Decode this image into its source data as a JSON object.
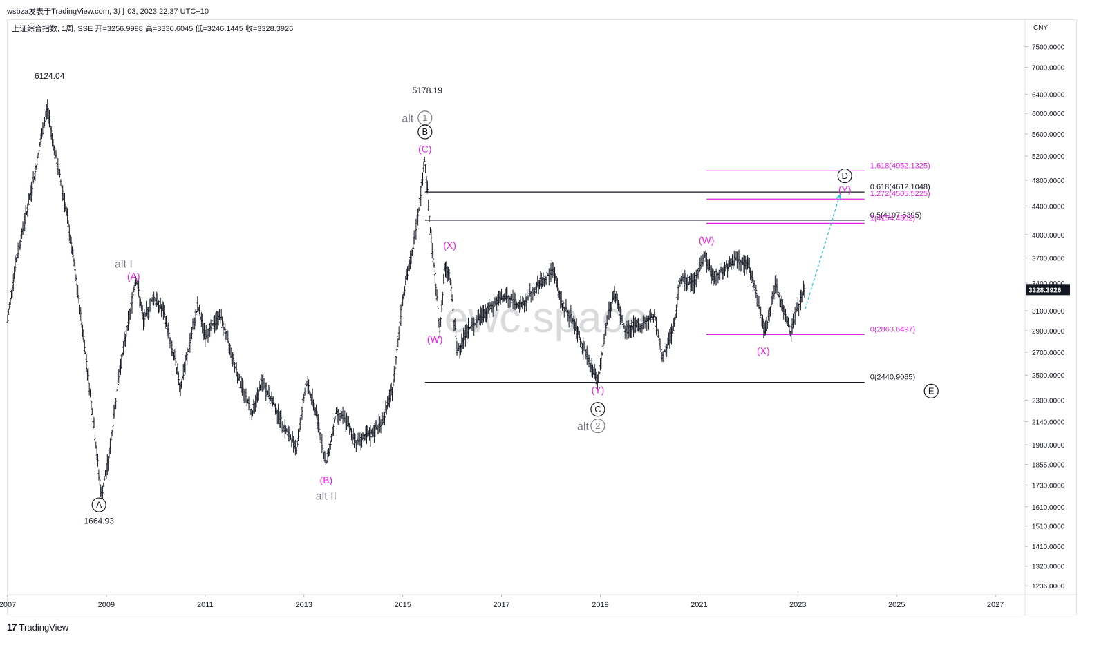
{
  "header": {
    "publish_info": "wsbza发表于TradingView.com,  3月 03, 2023 22:37 UTC+10",
    "symbol_line": "上证综合指数, 1周, SSE  开=3256.9998  高=3330.6045  低=3246.1445  收=3328.3926"
  },
  "footer": {
    "brand": "TradingView",
    "mark": "17"
  },
  "watermark": "ewc.space",
  "chart_data": {
    "type": "candlestick",
    "currency_label": "CNY",
    "y_axis": {
      "scale": "log",
      "range": [
        1200,
        8200
      ],
      "ticks": [
        "7500.0000",
        "7000.0000",
        "6400.0000",
        "6000.0000",
        "5600.0000",
        "5200.0000",
        "4800.0000",
        "4400.0000",
        "4000.0000",
        "3700.0000",
        "3400.0000",
        "3100.0000",
        "2900.0000",
        "2700.0000",
        "2500.0000",
        "2300.0000",
        "2140.0000",
        "1980.0000",
        "1855.0000",
        "1730.0000",
        "1610.0000",
        "1510.0000",
        "1410.0000",
        "1320.0000",
        "1236.0000"
      ],
      "tick_values": [
        7500,
        7000,
        6400,
        6000,
        5600,
        5200,
        4800,
        4400,
        4000,
        3700,
        3400,
        3100,
        2900,
        2700,
        2500,
        2300,
        2140,
        1980,
        1855,
        1730,
        1610,
        1510,
        1410,
        1320,
        1236
      ],
      "last_price_label": "3328.3926",
      "last_price": 3328.3926
    },
    "x_axis": {
      "range": [
        2007.0,
        2027.6
      ],
      "ticks": [
        "2007",
        "2009",
        "2011",
        "2013",
        "2015",
        "2017",
        "2019",
        "2021",
        "2023",
        "2025",
        "2027"
      ],
      "tick_values": [
        2007,
        2009,
        2011,
        2013,
        2015,
        2017,
        2019,
        2021,
        2023,
        2025,
        2027
      ]
    },
    "price_path": [
      [
        2007.0,
        3000
      ],
      [
        2007.15,
        3600
      ],
      [
        2007.35,
        4200
      ],
      [
        2007.55,
        4900
      ],
      [
        2007.7,
        5600
      ],
      [
        2007.8,
        6124.04
      ],
      [
        2007.95,
        5300
      ],
      [
        2008.15,
        4500
      ],
      [
        2008.35,
        3600
      ],
      [
        2008.55,
        2800
      ],
      [
        2008.75,
        2100
      ],
      [
        2008.9,
        1664.93
      ],
      [
        2009.05,
        1900
      ],
      [
        2009.25,
        2500
      ],
      [
        2009.45,
        3000
      ],
      [
        2009.6,
        3478
      ],
      [
        2009.75,
        3000
      ],
      [
        2009.95,
        3250
      ],
      [
        2010.15,
        3100
      ],
      [
        2010.35,
        2700
      ],
      [
        2010.5,
        2400
      ],
      [
        2010.65,
        2700
      ],
      [
        2010.85,
        3150
      ],
      [
        2011.0,
        2850
      ],
      [
        2011.3,
        3050
      ],
      [
        2011.5,
        2750
      ],
      [
        2011.7,
        2450
      ],
      [
        2011.95,
        2200
      ],
      [
        2012.15,
        2450
      ],
      [
        2012.35,
        2300
      ],
      [
        2012.6,
        2100
      ],
      [
        2012.85,
        1960
      ],
      [
        2013.05,
        2450
      ],
      [
        2013.25,
        2200
      ],
      [
        2013.45,
        1849
      ],
      [
        2013.65,
        2200
      ],
      [
        2013.85,
        2150
      ],
      [
        2014.05,
        2000
      ],
      [
        2014.35,
        2050
      ],
      [
        2014.6,
        2150
      ],
      [
        2014.8,
        2400
      ],
      [
        2015.0,
        3250
      ],
      [
        2015.2,
        3800
      ],
      [
        2015.35,
        4500
      ],
      [
        2015.45,
        5178.19
      ],
      [
        2015.55,
        4100
      ],
      [
        2015.65,
        3500
      ],
      [
        2015.75,
        2900
      ],
      [
        2015.85,
        3580
      ],
      [
        2015.95,
        3500
      ],
      [
        2016.1,
        2700
      ],
      [
        2016.3,
        2900
      ],
      [
        2016.6,
        3050
      ],
      [
        2016.9,
        3200
      ],
      [
        2017.1,
        3250
      ],
      [
        2017.4,
        3150
      ],
      [
        2017.7,
        3350
      ],
      [
        2018.05,
        3560
      ],
      [
        2018.2,
        3200
      ],
      [
        2018.45,
        3000
      ],
      [
        2018.7,
        2700
      ],
      [
        2018.95,
        2440.91
      ],
      [
        2019.15,
        3050
      ],
      [
        2019.3,
        3288
      ],
      [
        2019.5,
        2900
      ],
      [
        2019.8,
        2950
      ],
      [
        2020.1,
        3050
      ],
      [
        2020.25,
        2650
      ],
      [
        2020.5,
        2950
      ],
      [
        2020.6,
        3450
      ],
      [
        2020.9,
        3400
      ],
      [
        2021.1,
        3731
      ],
      [
        2021.3,
        3450
      ],
      [
        2021.55,
        3600
      ],
      [
        2021.8,
        3700
      ],
      [
        2022.0,
        3600
      ],
      [
        2022.2,
        3200
      ],
      [
        2022.33,
        2863.65
      ],
      [
        2022.55,
        3400
      ],
      [
        2022.75,
        3050
      ],
      [
        2022.85,
        2885
      ],
      [
        2023.0,
        3150
      ],
      [
        2023.15,
        3328.3926
      ]
    ],
    "levels": [
      {
        "label": "1.618(4952.1325)",
        "value": 4952.1325,
        "color": "#e91ee9",
        "x_range": [
          2021.15,
          2024.35
        ]
      },
      {
        "label": "0.618(4612.1048)",
        "value": 4612.1048,
        "color": "#131722",
        "x_range": [
          2015.45,
          2024.35
        ]
      },
      {
        "label": "1.272(4505.5225)",
        "value": 4505.5225,
        "color": "#e91ee9",
        "x_range": [
          2021.15,
          2024.35
        ]
      },
      {
        "label": "0.5(4197.5395)",
        "value": 4197.5395,
        "color": "#131722",
        "x_range": [
          2015.45,
          2024.35
        ]
      },
      {
        "label": "1(4154.4302)",
        "value": 4154.4302,
        "color": "#e91ee9",
        "x_range": [
          2021.15,
          2024.35
        ]
      },
      {
        "label": "0(2863.6497)",
        "value": 2863.6497,
        "color": "#e91ee9",
        "x_range": [
          2021.15,
          2024.35
        ]
      },
      {
        "label": "0(2440.9065)",
        "value": 2440.9065,
        "color": "#131722",
        "x_range": [
          2015.45,
          2024.35
        ]
      }
    ],
    "projection": {
      "from": [
        2023.15,
        3120
      ],
      "to": [
        2023.85,
        4570
      ],
      "color": "#26c6da"
    },
    "annotations": [
      {
        "text": "6124.04",
        "x": 2007.85,
        "y": 6800,
        "color": "#131722",
        "style": "plain",
        "size": 12
      },
      {
        "text": "1664.93",
        "x": 2008.85,
        "y": 1535,
        "color": "#131722",
        "style": "plain",
        "size": 12
      },
      {
        "text": "A",
        "x": 2008.85,
        "y": 1620,
        "color": "#131722",
        "style": "circle",
        "size": 11
      },
      {
        "text": "alt I",
        "x": 2009.35,
        "y": 3630,
        "color": "#787b86",
        "style": "plain",
        "size": 16
      },
      {
        "text": "(A)",
        "x": 2009.55,
        "y": 3480,
        "color": "#e91ee9",
        "style": "plain",
        "size": 14
      },
      {
        "text": "(B)",
        "x": 2013.45,
        "y": 1760,
        "color": "#e91ee9",
        "style": "plain",
        "size": 14
      },
      {
        "text": "alt II",
        "x": 2013.45,
        "y": 1670,
        "color": "#787b86",
        "style": "plain",
        "size": 16
      },
      {
        "text": "5178.19",
        "x": 2015.5,
        "y": 6480,
        "color": "#131722",
        "style": "plain",
        "size": 12
      },
      {
        "text": "alt",
        "x": 2015.1,
        "y": 5910,
        "color": "#787b86",
        "style": "plain",
        "size": 16
      },
      {
        "text": "1",
        "x": 2015.45,
        "y": 5910,
        "color": "#787b86",
        "style": "circle",
        "size": 11
      },
      {
        "text": "B",
        "x": 2015.45,
        "y": 5640,
        "color": "#131722",
        "style": "circle",
        "size": 11
      },
      {
        "text": "(C)",
        "x": 2015.45,
        "y": 5330,
        "color": "#e91ee9",
        "style": "plain",
        "size": 14
      },
      {
        "text": "(X)",
        "x": 2015.95,
        "y": 3860,
        "color": "#e91ee9",
        "style": "plain",
        "size": 14
      },
      {
        "text": "(W)",
        "x": 2015.65,
        "y": 2820,
        "color": "#e91ee9",
        "style": "plain",
        "size": 14
      },
      {
        "text": "(Y)",
        "x": 2018.95,
        "y": 2380,
        "color": "#e91ee9",
        "style": "plain",
        "size": 14
      },
      {
        "text": "C",
        "x": 2018.95,
        "y": 2230,
        "color": "#131722",
        "style": "circle",
        "size": 11
      },
      {
        "text": "alt",
        "x": 2018.65,
        "y": 2110,
        "color": "#787b86",
        "style": "plain",
        "size": 16
      },
      {
        "text": "2",
        "x": 2018.95,
        "y": 2110,
        "color": "#787b86",
        "style": "circle",
        "size": 11
      },
      {
        "text": "(W)",
        "x": 2021.15,
        "y": 3930,
        "color": "#e91ee9",
        "style": "plain",
        "size": 14
      },
      {
        "text": "(X)",
        "x": 2022.3,
        "y": 2710,
        "color": "#e91ee9",
        "style": "plain",
        "size": 14
      },
      {
        "text": "D",
        "x": 2023.95,
        "y": 4870,
        "color": "#131722",
        "style": "circle",
        "size": 11
      },
      {
        "text": "(Y)",
        "x": 2023.95,
        "y": 4650,
        "color": "#e91ee9",
        "style": "plain",
        "size": 14
      },
      {
        "text": "E",
        "x": 2025.7,
        "y": 2370,
        "color": "#131722",
        "style": "circle",
        "size": 11
      }
    ]
  }
}
